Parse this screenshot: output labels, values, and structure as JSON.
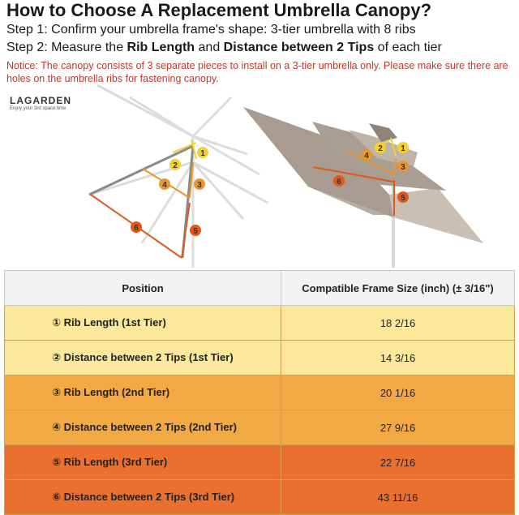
{
  "title": "How to Choose A Replacement Umbrella Canopy?",
  "step1": "Step 1: Confirm your umbrella frame's shape: 3-tier umbrella with 8 ribs",
  "step2": {
    "prefix": "Step 2: Measure the ",
    "bold1": "Rib Length",
    "mid": " and ",
    "bold2": "Distance between 2 Tips",
    "suffix": " of each tier"
  },
  "notice": "Notice: The canopy consists of 3 separate pieces to install on a 3-tier umbrella only. Please make sure there are holes on the umbrella ribs for fastening canopy.",
  "logo": {
    "word": "LAGARDEN",
    "tagline": "Enjoy your 3rd space time"
  },
  "markers": [
    "1",
    "2",
    "3",
    "4",
    "5",
    "6"
  ],
  "colors": {
    "tier1": "#f5d033",
    "tier2": "#e8962e",
    "tier3": "#dd5a1f",
    "header_bg": "#f2f2f2",
    "notice": "#c0392b"
  },
  "table": {
    "headers": [
      "Position",
      "Compatible Frame Size (inch) (± 3/16\")"
    ],
    "rows": [
      {
        "position": "① Rib Length (1st Tier)",
        "size": "18 2/16",
        "bg": "#fbe89a"
      },
      {
        "position": "② Distance between 2 Tips (1st Tier)",
        "size": "14 3/16",
        "bg": "#fbe89a"
      },
      {
        "position": "③ Rib Length (2nd Tier)",
        "size": "20 1/16",
        "bg": "#f2a944"
      },
      {
        "position": "④ Distance between 2 Tips (2nd Tier)",
        "size": "27 9/16",
        "bg": "#f2a944"
      },
      {
        "position": "⑤ Rib Length (3rd Tier)",
        "size": "22 7/16",
        "bg": "#e9702e"
      },
      {
        "position": "⑥ Distance between 2 Tips (3rd Tier)",
        "size": "43 11/16",
        "bg": "#e9702e"
      }
    ]
  }
}
